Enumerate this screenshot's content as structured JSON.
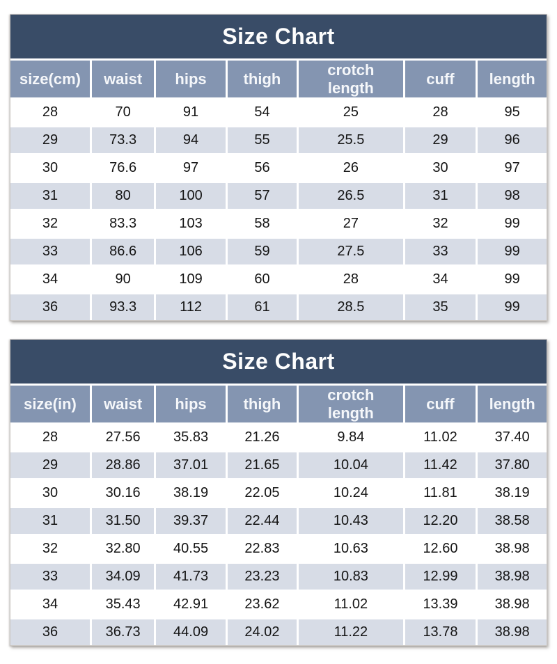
{
  "colors": {
    "title_bar_bg": "#394C67",
    "title_text": "#FFFFFF",
    "header_bg": "#8495B1",
    "header_text": "#FFFFFF",
    "row_bg": "#FFFFFF",
    "row_alt_bg": "#D7DCE6",
    "cell_text": "#141414"
  },
  "chart_data": [
    {
      "type": "table",
      "title": "Size Chart",
      "unit": "cm",
      "columns": [
        "size(cm)",
        "waist",
        "hips",
        "thigh",
        "crotch length",
        "cuff",
        "length"
      ],
      "rows": [
        [
          "28",
          "70",
          "91",
          "54",
          "25",
          "28",
          "95"
        ],
        [
          "29",
          "73.3",
          "94",
          "55",
          "25.5",
          "29",
          "96"
        ],
        [
          "30",
          "76.6",
          "97",
          "56",
          "26",
          "30",
          "97"
        ],
        [
          "31",
          "80",
          "100",
          "57",
          "26.5",
          "31",
          "98"
        ],
        [
          "32",
          "83.3",
          "103",
          "58",
          "27",
          "32",
          "99"
        ],
        [
          "33",
          "86.6",
          "106",
          "59",
          "27.5",
          "33",
          "99"
        ],
        [
          "34",
          "90",
          "109",
          "60",
          "28",
          "34",
          "99"
        ],
        [
          "36",
          "93.3",
          "112",
          "61",
          "28.5",
          "35",
          "99"
        ]
      ]
    },
    {
      "type": "table",
      "title": "Size Chart",
      "unit": "in",
      "columns": [
        "size(in)",
        "waist",
        "hips",
        "thigh",
        "crotch length",
        "cuff",
        "length"
      ],
      "rows": [
        [
          "28",
          "27.56",
          "35.83",
          "21.26",
          "9.84",
          "11.02",
          "37.40"
        ],
        [
          "29",
          "28.86",
          "37.01",
          "21.65",
          "10.04",
          "11.42",
          "37.80"
        ],
        [
          "30",
          "30.16",
          "38.19",
          "22.05",
          "10.24",
          "11.81",
          "38.19"
        ],
        [
          "31",
          "31.50",
          "39.37",
          "22.44",
          "10.43",
          "12.20",
          "38.58"
        ],
        [
          "32",
          "32.80",
          "40.55",
          "22.83",
          "10.63",
          "12.60",
          "38.98"
        ],
        [
          "33",
          "34.09",
          "41.73",
          "23.23",
          "10.83",
          "12.99",
          "38.98"
        ],
        [
          "34",
          "35.43",
          "42.91",
          "23.62",
          "11.02",
          "13.39",
          "38.98"
        ],
        [
          "36",
          "36.73",
          "44.09",
          "24.02",
          "11.22",
          "13.78",
          "38.98"
        ]
      ]
    }
  ]
}
